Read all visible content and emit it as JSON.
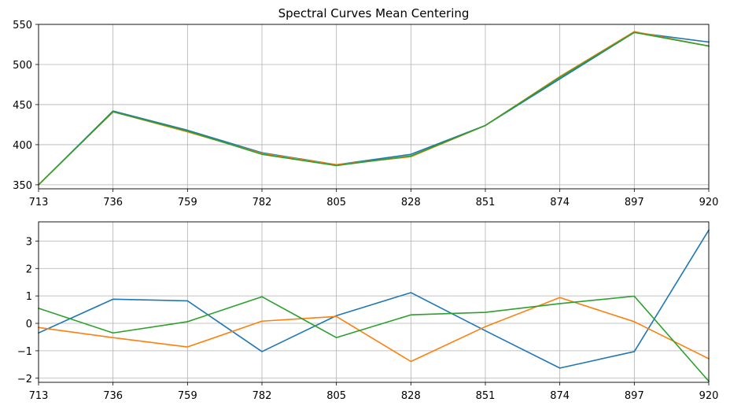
{
  "chart_data": [
    {
      "type": "line",
      "title": "Spectral Curves Mean Centering",
      "xlabel": "",
      "ylabel": "",
      "x": [
        713,
        736,
        759,
        782,
        805,
        828,
        851,
        874,
        897,
        920
      ],
      "xlim": [
        713,
        920
      ],
      "ylim": [
        345,
        550
      ],
      "yticks": [
        350,
        400,
        450,
        500,
        550
      ],
      "grid": true,
      "series": [
        {
          "color": "#1f77b4",
          "values": [
            350,
            442,
            418,
            390,
            375,
            388,
            424,
            482,
            540,
            528
          ]
        },
        {
          "color": "#ff7f0e",
          "values": [
            350,
            441,
            416,
            389,
            375,
            385,
            424,
            485,
            541,
            523
          ]
        },
        {
          "color": "#2ca02c",
          "values": [
            350,
            441,
            417,
            388,
            374,
            386,
            424,
            484,
            540,
            523
          ]
        }
      ]
    },
    {
      "type": "line",
      "title": "",
      "xlabel": "",
      "ylabel": "",
      "x": [
        713,
        736,
        759,
        782,
        805,
        828,
        851,
        874,
        897,
        920
      ],
      "xlim": [
        713,
        920
      ],
      "ylim": [
        -2.15,
        3.7
      ],
      "yticks": [
        -2,
        -1,
        0,
        1,
        2,
        3
      ],
      "grid": true,
      "series": [
        {
          "color": "#1f77b4",
          "values": [
            -0.35,
            0.88,
            0.82,
            -1.03,
            0.28,
            1.12,
            -0.27,
            -1.63,
            -1.03,
            3.4
          ]
        },
        {
          "color": "#ff7f0e",
          "values": [
            -0.15,
            -0.52,
            -0.86,
            0.08,
            0.25,
            -1.39,
            -0.12,
            0.94,
            0.06,
            -1.29
          ]
        },
        {
          "color": "#2ca02c",
          "values": [
            0.55,
            -0.35,
            0.06,
            0.97,
            -0.52,
            0.31,
            0.4,
            0.72,
            0.99,
            -2.11
          ]
        }
      ]
    }
  ]
}
